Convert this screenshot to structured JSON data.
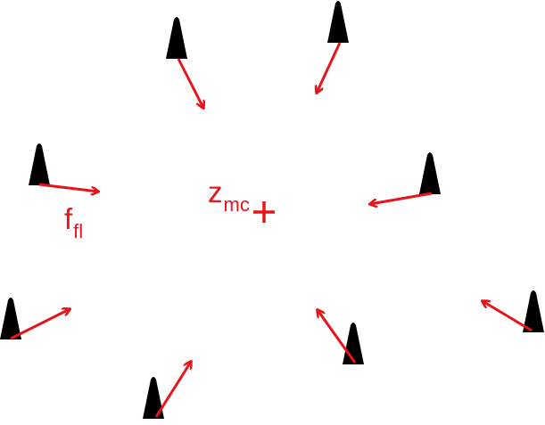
{
  "colors": {
    "arrow": "#e8141b",
    "robot": "#000000",
    "label": "#e8141b",
    "background": "#ffffff"
  },
  "labels": {
    "center_main": "z",
    "center_sub": "mc",
    "force_main": "f",
    "force_sub": "fl"
  },
  "icons": {
    "robot": "black-cone-icon",
    "vector": "red-arrow",
    "center": "red-plus-marker"
  }
}
